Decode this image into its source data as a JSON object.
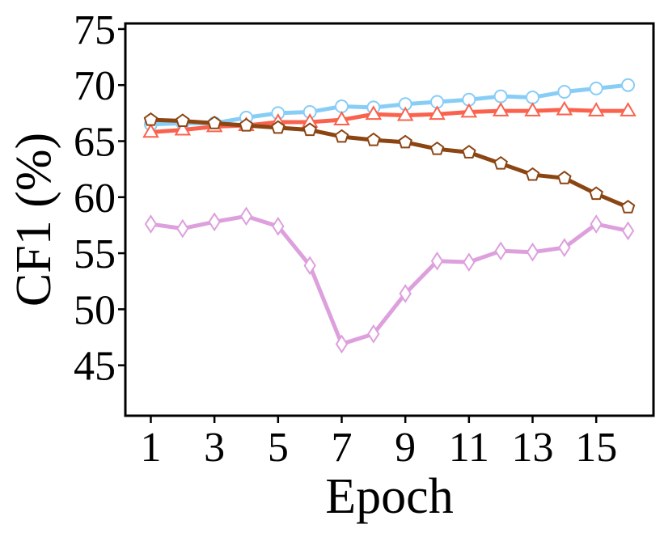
{
  "chart_data": {
    "type": "line",
    "title": "",
    "xlabel": "Epoch",
    "ylabel": "CF1 (%)",
    "x": [
      1,
      2,
      3,
      4,
      5,
      6,
      7,
      8,
      9,
      10,
      11,
      12,
      13,
      14,
      15,
      16
    ],
    "xlim": [
      0.2,
      16.8
    ],
    "ylim": [
      40.5,
      75.5
    ],
    "xticks": [
      1,
      3,
      5,
      7,
      9,
      11,
      13,
      15
    ],
    "yticks": [
      45,
      50,
      55,
      60,
      65,
      70,
      75
    ],
    "grid": false,
    "series": [
      {
        "color": "#88cdf6",
        "marker": "circle",
        "values": [
          66.5,
          66.6,
          66.6,
          67.1,
          67.5,
          67.6,
          68.1,
          68.0,
          68.3,
          68.5,
          68.7,
          69.0,
          68.9,
          69.4,
          69.7,
          70.0
        ]
      },
      {
        "color": "#fa624e",
        "marker": "triangle",
        "values": [
          65.8,
          66.0,
          66.3,
          66.4,
          66.7,
          66.7,
          66.9,
          67.4,
          67.3,
          67.4,
          67.6,
          67.7,
          67.7,
          67.8,
          67.7,
          67.7
        ]
      },
      {
        "color": "#8b4513",
        "marker": "pentagon",
        "values": [
          66.9,
          66.8,
          66.6,
          66.4,
          66.2,
          66.0,
          65.4,
          65.1,
          64.9,
          64.3,
          64.0,
          63.0,
          62.0,
          61.7,
          60.3,
          59.1
        ]
      },
      {
        "color": "#dda0dd",
        "marker": "diamond",
        "values": [
          57.6,
          57.2,
          57.8,
          58.3,
          57.4,
          53.9,
          46.9,
          47.8,
          51.4,
          54.3,
          54.2,
          55.2,
          55.1,
          55.5,
          57.6,
          57.0
        ]
      }
    ]
  }
}
